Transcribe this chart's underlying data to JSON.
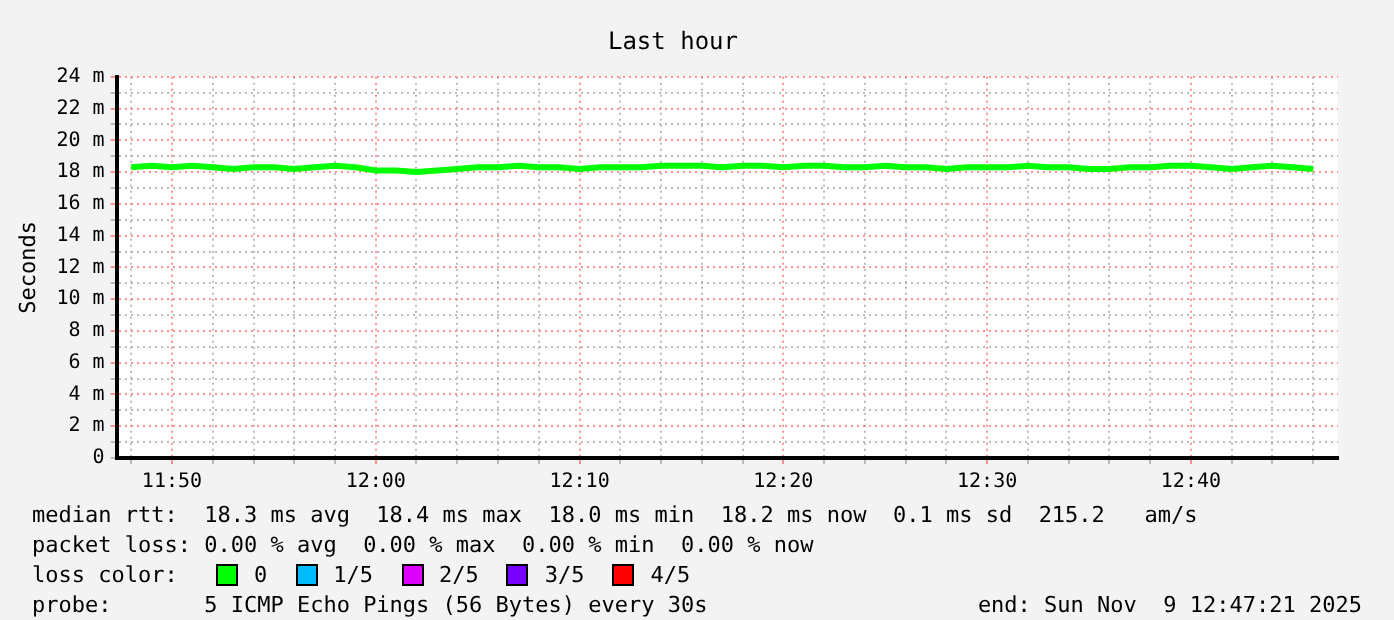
{
  "chart_data": {
    "type": "line",
    "title": "Last hour",
    "ylabel": "Seconds",
    "x": [
      11.8,
      11.8167,
      11.8333,
      11.85,
      11.8667,
      11.8833,
      11.9,
      11.9167,
      11.9333,
      11.95,
      11.9667,
      11.9833,
      12,
      12.0167,
      12.0333,
      12.05,
      12.0667,
      12.0833,
      12.1,
      12.1167,
      12.1333,
      12.15,
      12.1667,
      12.1833,
      12.2,
      12.2167,
      12.2333,
      12.25,
      12.2667,
      12.2833,
      12.3,
      12.3167,
      12.3333,
      12.35,
      12.3667,
      12.3833,
      12.4,
      12.4167,
      12.4333,
      12.45,
      12.4667,
      12.4833,
      12.5,
      12.5167,
      12.5333,
      12.55,
      12.5667,
      12.5833,
      12.6,
      12.6167,
      12.6333,
      12.65,
      12.6667,
      12.6833,
      12.7,
      12.7167,
      12.7333,
      12.75,
      12.7667
    ],
    "series": [
      {
        "name": "0",
        "color": "#00ff00",
        "values": [
          18.3,
          18.4,
          18.3,
          18.4,
          18.3,
          18.2,
          18.3,
          18.3,
          18.2,
          18.3,
          18.4,
          18.3,
          18.1,
          18.1,
          18.0,
          18.1,
          18.2,
          18.3,
          18.3,
          18.4,
          18.3,
          18.3,
          18.2,
          18.3,
          18.3,
          18.3,
          18.4,
          18.4,
          18.4,
          18.3,
          18.4,
          18.4,
          18.3,
          18.4,
          18.4,
          18.3,
          18.3,
          18.4,
          18.3,
          18.3,
          18.2,
          18.3,
          18.3,
          18.3,
          18.4,
          18.3,
          18.3,
          18.2,
          18.2,
          18.3,
          18.3,
          18.4,
          18.4,
          18.3,
          18.2,
          18.3,
          18.4,
          18.3,
          18.2
        ]
      },
      {
        "name": "1/5",
        "color": "#00bbff",
        "values": [
          null,
          null,
          null,
          null,
          null,
          null,
          null,
          null,
          null,
          null,
          null,
          null,
          null,
          null,
          null,
          null,
          null,
          null,
          null,
          null,
          null,
          null,
          null,
          null,
          null,
          null,
          null,
          null,
          null,
          null,
          null,
          null,
          null,
          null,
          null,
          null,
          null,
          null,
          null,
          null,
          null,
          null,
          null,
          null,
          null,
          null,
          null,
          null,
          null,
          null,
          null,
          null,
          null,
          null,
          null,
          null,
          null,
          null,
          null
        ]
      },
      {
        "name": "2/5",
        "color": "#dd00ff",
        "values": [
          null,
          null,
          null,
          null,
          null,
          null,
          null,
          null,
          null,
          null,
          null,
          null,
          null,
          null,
          null,
          null,
          null,
          null,
          null,
          null,
          null,
          null,
          null,
          null,
          null,
          null,
          null,
          null,
          null,
          null,
          null,
          null,
          null,
          null,
          null,
          null,
          null,
          null,
          null,
          null,
          null,
          null,
          null,
          null,
          null,
          null,
          null,
          null,
          null,
          null,
          null,
          null,
          null,
          null,
          null,
          null,
          null,
          null,
          null
        ]
      },
      {
        "name": "3/5",
        "color": "#7700ff",
        "values": [
          null,
          null,
          null,
          null,
          null,
          null,
          null,
          null,
          null,
          null,
          null,
          null,
          null,
          null,
          null,
          null,
          null,
          null,
          null,
          null,
          null,
          null,
          null,
          null,
          null,
          null,
          null,
          null,
          null,
          null,
          null,
          null,
          null,
          null,
          null,
          null,
          null,
          null,
          null,
          null,
          null,
          null,
          null,
          null,
          null,
          null,
          null,
          null,
          null,
          null,
          null,
          null,
          null,
          null,
          null,
          null,
          null,
          null,
          null
        ]
      },
      {
        "name": "4/5",
        "color": "#ff0000",
        "values": [
          null,
          null,
          null,
          null,
          null,
          null,
          null,
          null,
          null,
          null,
          null,
          null,
          null,
          null,
          null,
          null,
          null,
          null,
          null,
          null,
          null,
          null,
          null,
          null,
          null,
          null,
          null,
          null,
          null,
          null,
          null,
          null,
          null,
          null,
          null,
          null,
          null,
          null,
          null,
          null,
          null,
          null,
          null,
          null,
          null,
          null,
          null,
          null,
          null,
          null,
          null,
          null,
          null,
          null,
          null,
          null,
          null,
          null,
          null
        ]
      }
    ],
    "xlim": [
      11.788,
      12.787
    ],
    "xticks": [
      {
        "value": 11.8,
        "label": null
      },
      {
        "value": 11.8333,
        "label": "11:50"
      },
      {
        "value": 11.8667,
        "label": null
      },
      {
        "value": 11.9,
        "label": null
      },
      {
        "value": 11.9333,
        "label": null
      },
      {
        "value": 11.9667,
        "label": null
      },
      {
        "value": 12,
        "label": "12:00"
      },
      {
        "value": 12.0333,
        "label": null
      },
      {
        "value": 12.0667,
        "label": null
      },
      {
        "value": 12.1,
        "label": null
      },
      {
        "value": 12.1333,
        "label": null
      },
      {
        "value": 12.1667,
        "label": "12:10"
      },
      {
        "value": 12.2,
        "label": null
      },
      {
        "value": 12.2333,
        "label": null
      },
      {
        "value": 12.2667,
        "label": null
      },
      {
        "value": 12.3,
        "label": null
      },
      {
        "value": 12.3333,
        "label": "12:20"
      },
      {
        "value": 12.3667,
        "label": null
      },
      {
        "value": 12.4,
        "label": null
      },
      {
        "value": 12.4333,
        "label": null
      },
      {
        "value": 12.4667,
        "label": null
      },
      {
        "value": 12.5,
        "label": "12:30"
      },
      {
        "value": 12.5333,
        "label": null
      },
      {
        "value": 12.5667,
        "label": null
      },
      {
        "value": 12.6,
        "label": null
      },
      {
        "value": 12.6333,
        "label": null
      },
      {
        "value": 12.6667,
        "label": "12:40"
      },
      {
        "value": 12.7,
        "label": null
      },
      {
        "value": 12.7333,
        "label": null
      },
      {
        "value": 12.7667,
        "label": null
      }
    ],
    "ylim": [
      0,
      24
    ],
    "yticks": [
      0,
      {
        "value": 1,
        "label": null
      },
      {
        "value": 2,
        "label": "2 m"
      },
      {
        "value": 3,
        "label": null
      },
      {
        "value": 4,
        "label": "4 m"
      },
      {
        "value": 5,
        "label": null
      },
      {
        "value": 6,
        "label": "6 m"
      },
      {
        "value": 7,
        "label": null
      },
      {
        "value": 8,
        "label": "8 m"
      },
      {
        "value": 9,
        "label": null
      },
      {
        "value": 10,
        "label": "10 m"
      },
      {
        "value": 11,
        "label": null
      },
      {
        "value": 12,
        "label": "12 m"
      },
      {
        "value": 13,
        "label": null
      },
      {
        "value": 14,
        "label": "14 m"
      },
      {
        "value": 15,
        "label": null
      },
      {
        "value": 16,
        "label": "16 m"
      },
      {
        "value": 17,
        "label": null
      },
      {
        "value": 18,
        "label": "18 m"
      },
      {
        "value": 19,
        "label": null
      },
      {
        "value": 20,
        "label": "20 m"
      },
      {
        "value": 21,
        "label": null
      },
      {
        "value": 22,
        "label": "22 m"
      },
      {
        "value": 23,
        "label": null
      },
      {
        "value": 24,
        "label": "24 m"
      }
    ],
    "grid": true,
    "legend": "bottom",
    "marker": "none",
    "line_style": "solid",
    "annotations": [
      "median rtt:  18.3 ms avg  18.4 ms max  18.0 ms min  18.2 ms now  0.1 ms sd  215.2   am/s",
      "packet loss: 0.00 % avg  0.00 % max  0.00 % min  0.00 % now",
      "loss color:",
      "probe:       5 ICMP Echo Pings (56 Bytes) every 30s",
      "end: Sun Nov  9 12:47:21 2025"
    ]
  }
}
